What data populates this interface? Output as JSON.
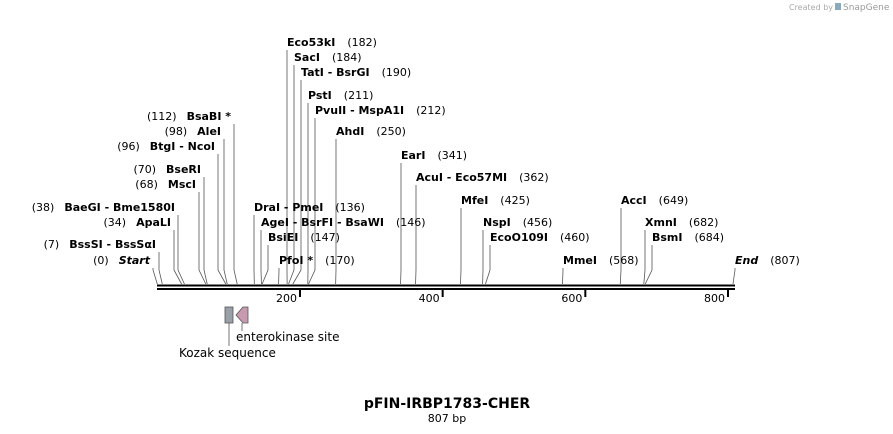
{
  "credit": "Created by",
  "brand": "SnapGene",
  "title": "pFIN-IRBP1783-CHER",
  "length": "807 bp",
  "ruler": {
    "min": 0,
    "max": 807,
    "ticks": [
      200,
      400,
      600,
      800
    ]
  },
  "sites": [
    {
      "name": "Eco53kI",
      "position": {
        "value": 182,
        "label": "(182)"
      }
    },
    {
      "name": "SacI",
      "position": {
        "value": 184,
        "label": "(184)"
      }
    },
    {
      "name": "TatI  -  BsrGI",
      "position": {
        "value": 190,
        "label": "(190)"
      }
    },
    {
      "name": "PstI",
      "position": {
        "value": 211,
        "label": "(211)"
      }
    },
    {
      "name": "PvuII  -  MspA1I",
      "position": {
        "value": 212,
        "label": "(212)"
      }
    },
    {
      "name": "BsaBI *",
      "position": {
        "value": 112,
        "label": "(112)"
      }
    },
    {
      "name": "AhdI",
      "position": {
        "value": 250,
        "label": "(250)"
      }
    },
    {
      "name": "AleI",
      "position": {
        "value": 98,
        "label": "(98)"
      }
    },
    {
      "name": "BtgI  -  NcoI",
      "position": {
        "value": 96,
        "label": "(96)"
      }
    },
    {
      "name": "EarI",
      "position": {
        "value": 341,
        "label": "(341)"
      }
    },
    {
      "name": "BseRI",
      "position": {
        "value": 70,
        "label": "(70)"
      }
    },
    {
      "name": "AcuI  -  Eco57MI",
      "position": {
        "value": 362,
        "label": "(362)"
      }
    },
    {
      "name": "MscI",
      "position": {
        "value": 68,
        "label": "(68)"
      }
    },
    {
      "name": "MfeI",
      "position": {
        "value": 425,
        "label": "(425)"
      }
    },
    {
      "name": "AccI",
      "position": {
        "value": 649,
        "label": "(649)"
      }
    },
    {
      "name": "BaeGI  -  Bme1580I",
      "position": {
        "value": 38,
        "label": "(38)"
      }
    },
    {
      "name": "DraI  -  PmeI",
      "position": {
        "value": 136,
        "label": "(136)"
      }
    },
    {
      "name": "ApaLI",
      "position": {
        "value": 34,
        "label": "(34)"
      }
    },
    {
      "name": "AgeI  -  BsrFI  -  BsaWI",
      "position": {
        "value": 146,
        "label": "(146)"
      }
    },
    {
      "name": "NspI",
      "position": {
        "value": 456,
        "label": "(456)"
      }
    },
    {
      "name": "XmnI",
      "position": {
        "value": 682,
        "label": "(682)"
      }
    },
    {
      "name": "BsiEI",
      "position": {
        "value": 147,
        "label": "(147)"
      }
    },
    {
      "name": "EcoO109I",
      "position": {
        "value": 460,
        "label": "(460)"
      }
    },
    {
      "name": "BsmI",
      "position": {
        "value": 684,
        "label": "(684)"
      }
    },
    {
      "name": "BssSI  -  BssSαI",
      "position": {
        "value": 7,
        "label": "(7)"
      }
    },
    {
      "name": "Start",
      "position": {
        "value": 0,
        "label": "(0)"
      }
    },
    {
      "name": "PfoI *",
      "position": {
        "value": 170,
        "label": "(170)"
      }
    },
    {
      "name": "MmeI",
      "position": {
        "value": 568,
        "label": "(568)"
      }
    },
    {
      "name": "End",
      "position": {
        "value": 807,
        "label": "(807)"
      }
    }
  ],
  "features": [
    {
      "label": "enterokinase site"
    },
    {
      "label": "Kozak sequence"
    }
  ]
}
